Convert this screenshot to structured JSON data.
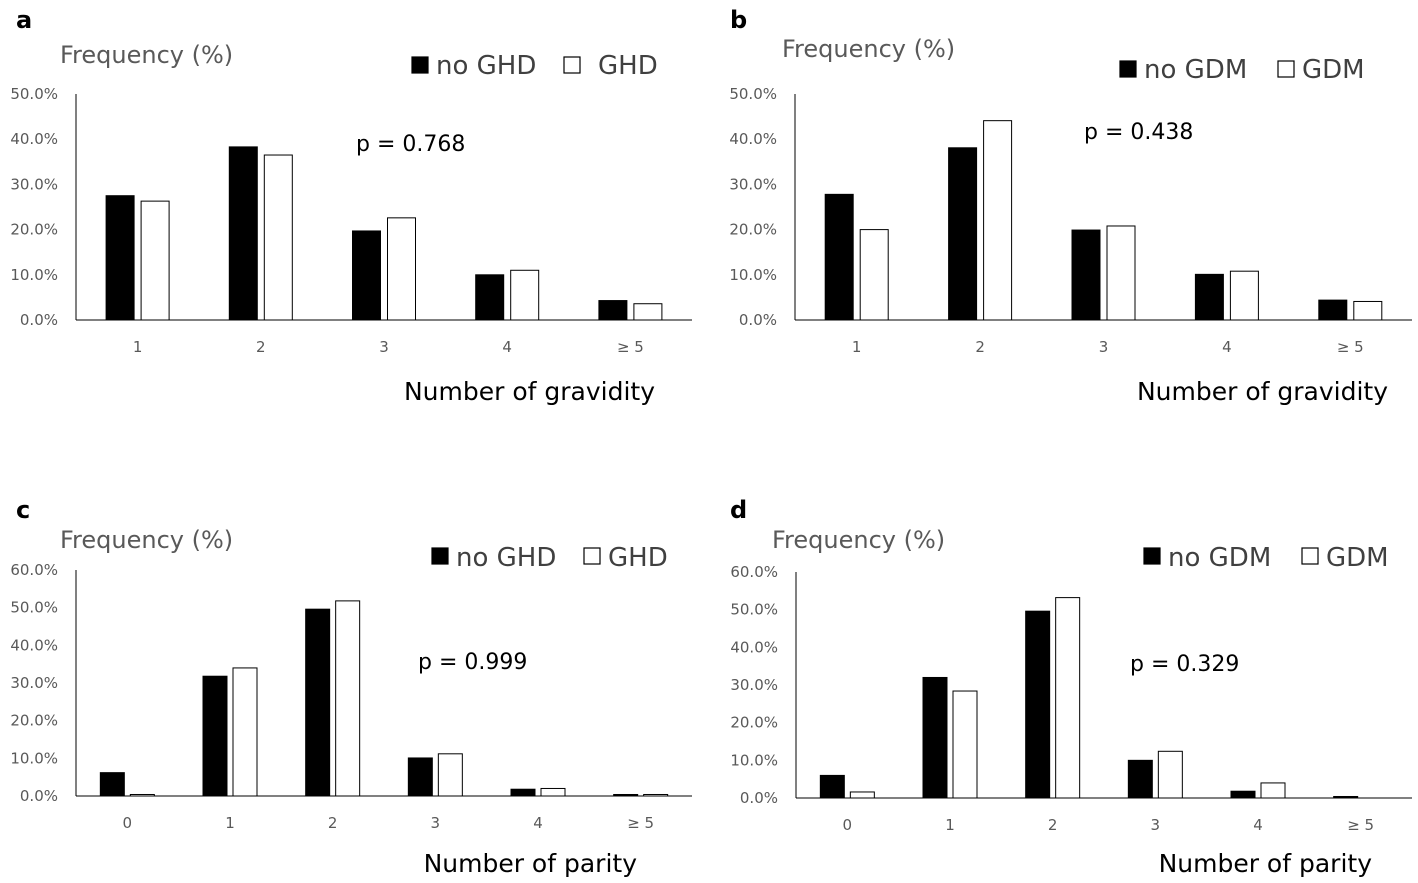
{
  "chart_data": [
    {
      "panel": "a",
      "type": "bar",
      "ylabel": "Frequency (%)",
      "xlabel": "Number of gravidity",
      "categories": [
        "1",
        "2",
        "3",
        "4",
        "≥ 5"
      ],
      "yticks": [
        "0.0%",
        "10.0%",
        "20.0%",
        "30.0%",
        "40.0%",
        "50.0%"
      ],
      "ylim": [
        0,
        50
      ],
      "annotation": "p = 0.768",
      "legend_position": "top-right",
      "series": [
        {
          "name": "no GHD",
          "color": "#000000",
          "values": [
            27.5,
            38.3,
            19.7,
            10.0,
            4.3
          ]
        },
        {
          "name": "GHD",
          "color": "#ffffff",
          "values": [
            26.3,
            36.5,
            22.6,
            11.0,
            3.6
          ]
        }
      ]
    },
    {
      "panel": "b",
      "type": "bar",
      "ylabel": "Frequency (%)",
      "xlabel": "Number of gravidity",
      "categories": [
        "1",
        "2",
        "3",
        "4",
        "≥ 5"
      ],
      "yticks": [
        "0.0%",
        "10.0%",
        "20.0%",
        "30.0%",
        "40.0%",
        "50.0%"
      ],
      "ylim": [
        0,
        50
      ],
      "annotation": "p = 0.438",
      "legend_position": "top-right",
      "series": [
        {
          "name": "no GDM",
          "color": "#000000",
          "values": [
            27.8,
            38.1,
            19.9,
            10.1,
            4.4
          ]
        },
        {
          "name": "GDM",
          "color": "#ffffff",
          "values": [
            20.0,
            44.1,
            20.8,
            10.8,
            4.1
          ]
        }
      ]
    },
    {
      "panel": "c",
      "type": "bar",
      "ylabel": "Frequency (%)",
      "xlabel": "Number of parity",
      "categories": [
        "0",
        "1",
        "2",
        "3",
        "4",
        "≥ 5"
      ],
      "yticks": [
        "0.0%",
        "10.0%",
        "20.0%",
        "30.0%",
        "40.0%",
        "50.0%",
        "60.0%"
      ],
      "ylim": [
        0,
        60
      ],
      "annotation": "p = 0.999",
      "legend_position": "top-right",
      "series": [
        {
          "name": "no GHD",
          "color": "#000000",
          "values": [
            6.2,
            31.8,
            49.6,
            10.1,
            1.8,
            0.4
          ]
        },
        {
          "name": "GHD",
          "color": "#ffffff",
          "values": [
            0.4,
            34.0,
            51.8,
            11.2,
            2.0,
            0.4
          ]
        }
      ]
    },
    {
      "panel": "d",
      "type": "bar",
      "ylabel": "Frequency (%)",
      "xlabel": "Number of parity",
      "categories": [
        "0",
        "1",
        "2",
        "3",
        "4",
        "≥ 5"
      ],
      "yticks": [
        "0.0%",
        "10.0%",
        "20.0%",
        "30.0%",
        "40.0%",
        "50.0%",
        "60.0%"
      ],
      "ylim": [
        0,
        60
      ],
      "annotation": "p = 0.329",
      "legend_position": "top-right",
      "series": [
        {
          "name": "no GDM",
          "color": "#000000",
          "values": [
            6.0,
            32.0,
            49.6,
            10.0,
            1.8,
            0.4
          ]
        },
        {
          "name": "GDM",
          "color": "#ffffff",
          "values": [
            1.6,
            28.4,
            53.2,
            12.4,
            4.0,
            0.0
          ]
        }
      ]
    }
  ]
}
